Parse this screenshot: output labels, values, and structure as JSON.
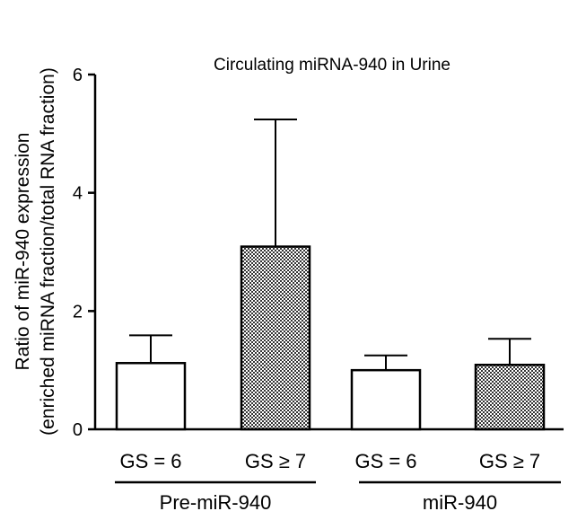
{
  "chart_data": {
    "type": "bar",
    "title": "Circulating miRNA-940 in Urine",
    "ylabel_line1": "Ratio of miR-940 expression",
    "ylabel_line2": "(enriched miRNA fraction/total RNA fraction)",
    "ylim": [
      0,
      6
    ],
    "yticks": [
      "0",
      "2",
      "4",
      "6"
    ],
    "categories": [
      "GS = 6",
      "GS ≥ 7",
      "GS = 6",
      "GS ≥ 7"
    ],
    "values": [
      1.12,
      3.09,
      1.0,
      1.09
    ],
    "errors": [
      0.47,
      2.15,
      0.25,
      0.44
    ],
    "fills": [
      "white",
      "hatched",
      "white",
      "hatched"
    ],
    "groups": [
      {
        "label": "Pre-miR-940",
        "categories": [
          0,
          1
        ]
      },
      {
        "label": "miR-940",
        "categories": [
          2,
          3
        ]
      }
    ],
    "grid": false,
    "legend": "none"
  }
}
